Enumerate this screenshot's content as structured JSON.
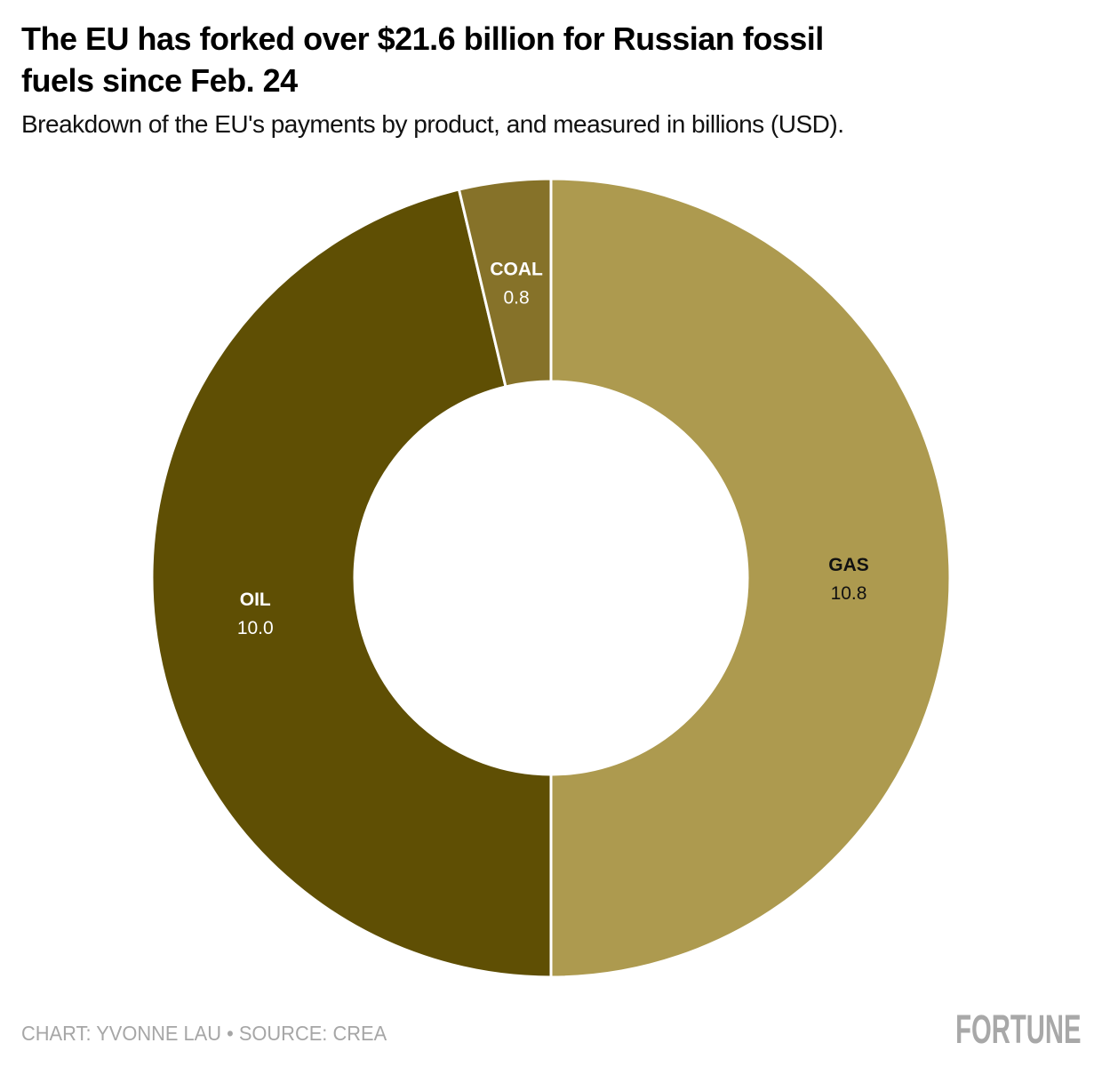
{
  "header": {
    "title_line1": "The EU has forked over $21.6 billion for Russian fossil",
    "title_line2": "fuels since Feb. 24",
    "subtitle": "Breakdown of the EU's payments by product, and measured in billions (USD)."
  },
  "chart_data": {
    "type": "pie",
    "subtype": "donut",
    "title": "The EU has forked over $21.6 billion for Russian fossil fuels since Feb. 24",
    "subtitle": "Breakdown of the EU's payments by product, and measured in billions (USD).",
    "unit": "billions USD",
    "total": 21.6,
    "start_angle_deg": 0,
    "direction": "clockwise",
    "legend_position": "labels-inside-slices",
    "separator_color": "#ffffff",
    "slices": [
      {
        "label": "GAS",
        "value": 10.8,
        "value_label": "10.8",
        "color": "#ad9a4f",
        "text_color": "#111111"
      },
      {
        "label": "OIL",
        "value": 10.0,
        "value_label": "10.0",
        "color": "#5f4f04",
        "text_color": "#ffffff"
      },
      {
        "label": "COAL",
        "value": 0.8,
        "value_label": "0.8",
        "color": "#867229",
        "text_color": "#ffffff"
      }
    ]
  },
  "footer": {
    "credit": "CHART: YVONNE LAU • SOURCE: CREA",
    "logo": "FORTUNE"
  }
}
